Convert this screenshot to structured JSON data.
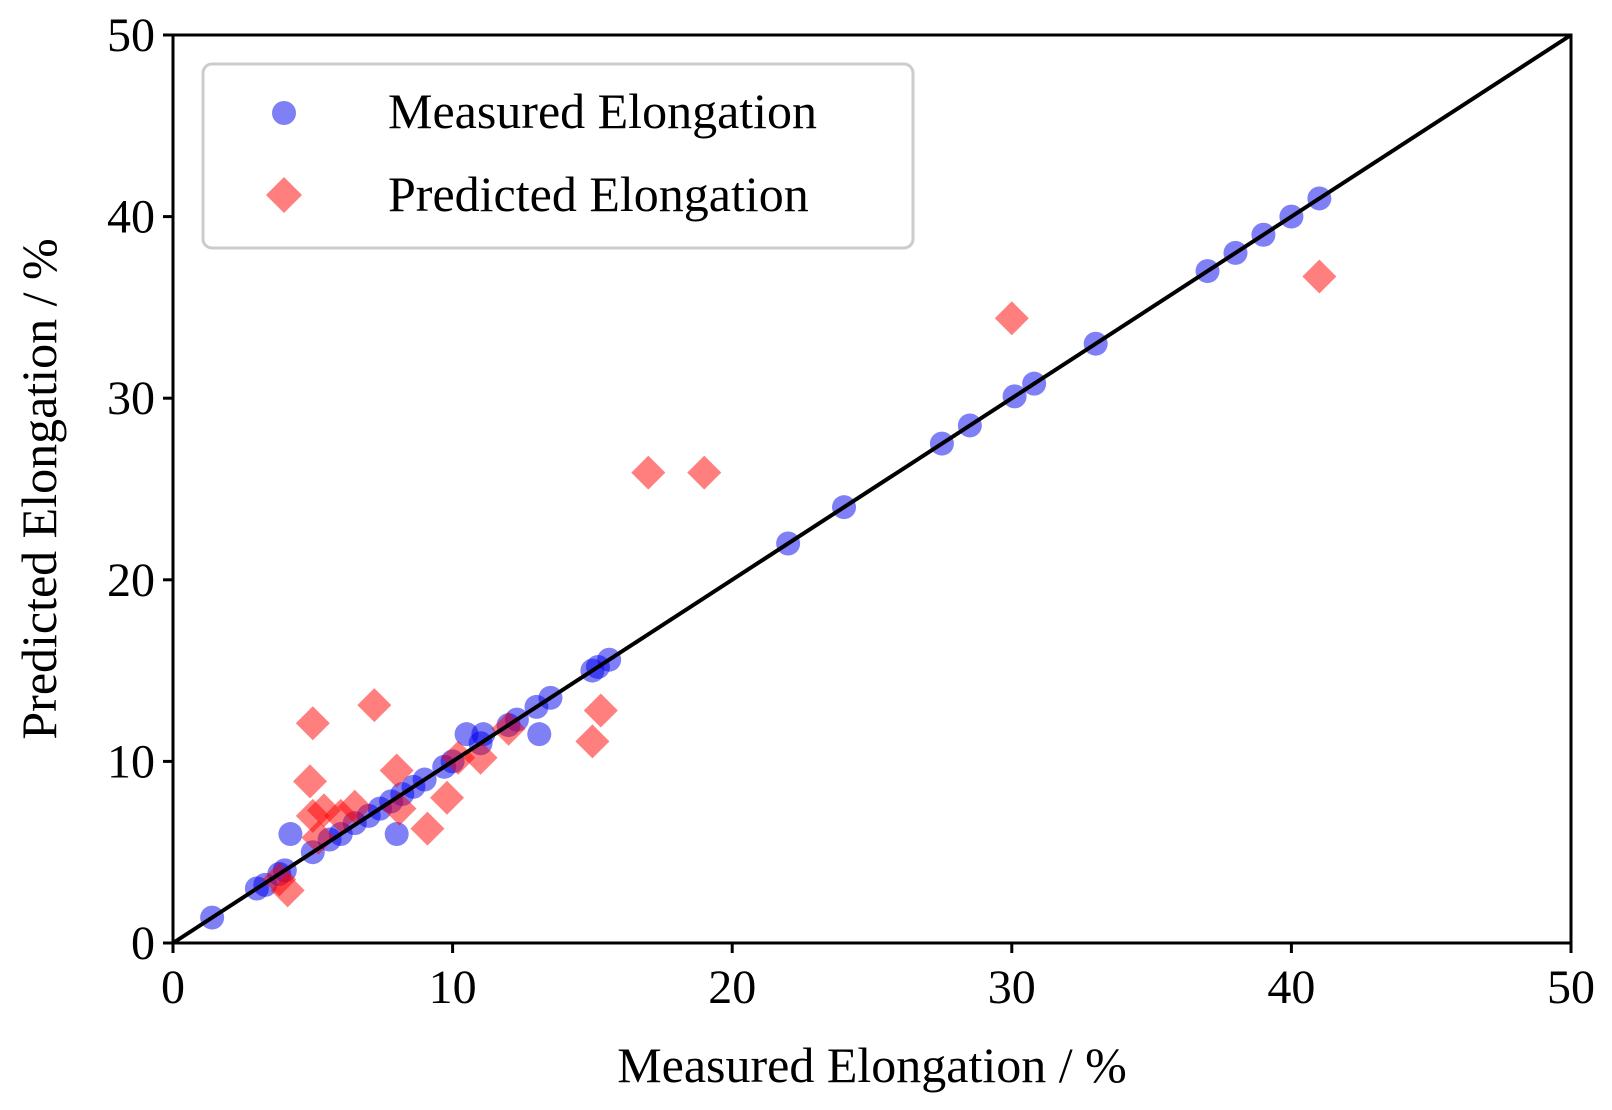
{
  "chart_data": {
    "type": "scatter",
    "xlabel": "Measured Elongation / %",
    "ylabel": "Predicted Elongation / %",
    "xlim": [
      0,
      50
    ],
    "ylim": [
      0,
      50
    ],
    "xticks": [
      0,
      10,
      20,
      30,
      40,
      50
    ],
    "yticks": [
      0,
      10,
      20,
      30,
      40,
      50
    ],
    "grid": false,
    "legend_position": "top-left",
    "reference_line": {
      "x": [
        0,
        50
      ],
      "y": [
        0,
        50
      ],
      "color": "#000000"
    },
    "series": [
      {
        "name": "Measured Elongation",
        "marker": "circle",
        "color": "#0000ee",
        "opacity": 0.5,
        "points": [
          [
            1.4,
            1.4
          ],
          [
            3.0,
            3.0
          ],
          [
            3.3,
            3.2
          ],
          [
            3.8,
            3.8
          ],
          [
            4.0,
            4.0
          ],
          [
            4.2,
            6.0
          ],
          [
            5.0,
            5.0
          ],
          [
            5.6,
            5.7
          ],
          [
            6.0,
            6.0
          ],
          [
            6.5,
            6.6
          ],
          [
            7.0,
            7.0
          ],
          [
            7.4,
            7.4
          ],
          [
            7.8,
            7.8
          ],
          [
            8.0,
            6.0
          ],
          [
            8.2,
            8.2
          ],
          [
            8.6,
            8.6
          ],
          [
            9.0,
            9.0
          ],
          [
            9.7,
            9.7
          ],
          [
            10.0,
            10.0
          ],
          [
            10.5,
            11.5
          ],
          [
            11.0,
            11.0
          ],
          [
            11.1,
            11.5
          ],
          [
            12.0,
            12.0
          ],
          [
            12.3,
            12.3
          ],
          [
            13.0,
            13.0
          ],
          [
            13.1,
            11.5
          ],
          [
            13.5,
            13.5
          ],
          [
            15.0,
            15.0
          ],
          [
            15.2,
            15.2
          ],
          [
            15.6,
            15.6
          ],
          [
            22.0,
            22.0
          ],
          [
            24.0,
            24.0
          ],
          [
            27.5,
            27.5
          ],
          [
            28.5,
            28.5
          ],
          [
            30.1,
            30.1
          ],
          [
            30.8,
            30.8
          ],
          [
            33.0,
            33.0
          ],
          [
            37.0,
            37.0
          ],
          [
            38.0,
            38.0
          ],
          [
            39.0,
            39.0
          ],
          [
            40.0,
            40.0
          ],
          [
            41.0,
            41.0
          ]
        ]
      },
      {
        "name": "Predicted Elongation",
        "marker": "diamond",
        "color": "#ff0000",
        "opacity": 0.5,
        "points": [
          [
            3.8,
            3.5
          ],
          [
            4.1,
            2.9
          ],
          [
            4.9,
            8.9
          ],
          [
            5.0,
            12.1
          ],
          [
            5.0,
            7.0
          ],
          [
            5.2,
            5.8
          ],
          [
            5.4,
            7.3
          ],
          [
            6.0,
            7.0
          ],
          [
            6.5,
            7.5
          ],
          [
            7.2,
            13.1
          ],
          [
            8.0,
            9.5
          ],
          [
            8.1,
            7.4
          ],
          [
            9.1,
            6.3
          ],
          [
            9.8,
            8.0
          ],
          [
            10.2,
            10.2
          ],
          [
            11.0,
            10.2
          ],
          [
            12.0,
            11.8
          ],
          [
            15.0,
            11.1
          ],
          [
            15.3,
            12.8
          ],
          [
            17.0,
            25.9
          ],
          [
            19.0,
            25.9
          ],
          [
            30.0,
            34.4
          ],
          [
            41.0,
            36.7
          ]
        ]
      }
    ]
  }
}
